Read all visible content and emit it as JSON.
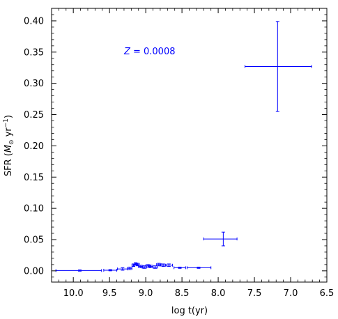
{
  "chart_data": {
    "type": "scatter",
    "title": "",
    "xlabel": "log t(yr)",
    "ylabel_parts": {
      "prefix": "SFR (",
      "msun": "M",
      "sun_symbol": "⊙",
      "mid": " yr",
      "exp": "−1",
      "suffix": ")"
    },
    "xlim": [
      10.3,
      6.5
    ],
    "ylim": [
      -0.018,
      0.42
    ],
    "x_inverted": true,
    "x_ticks": [
      10.0,
      9.5,
      9.0,
      8.5,
      8.0,
      7.5,
      7.0,
      6.5
    ],
    "x_tick_labels": [
      "10.0",
      "9.5",
      "9.0",
      "8.5",
      "8.0",
      "7.5",
      "7.0",
      "6.5"
    ],
    "y_ticks": [
      0.0,
      0.05,
      0.1,
      0.15,
      0.2,
      0.25,
      0.3,
      0.35,
      0.4
    ],
    "y_tick_labels": [
      "0.00",
      "0.05",
      "0.10",
      "0.15",
      "0.20",
      "0.25",
      "0.30",
      "0.35",
      "0.40"
    ],
    "annotation": {
      "italic": "Z",
      "rest": " = 0.0008",
      "x": 9.3,
      "y": 0.352
    },
    "series_color": "#0000ff",
    "points": [
      {
        "x": 7.18,
        "y": 0.327,
        "xerr_lo": 0.45,
        "xerr_hi": 0.47,
        "yerr": 0.072
      },
      {
        "x": 7.93,
        "y": 0.051,
        "xerr_lo": 0.27,
        "xerr_hi": 0.19,
        "yerr": 0.011
      },
      {
        "x": 9.91,
        "y": 0.0005,
        "xerr_lo": 0.33,
        "xerr_hi": 0.3,
        "yerr": 0.001
      },
      {
        "x": 9.49,
        "y": 0.001,
        "xerr_lo": 0.09,
        "xerr_hi": 0.09,
        "yerr": 0.001
      },
      {
        "x": 9.32,
        "y": 0.003,
        "xerr_lo": 0.07,
        "xerr_hi": 0.07,
        "yerr": 0.002
      },
      {
        "x": 9.22,
        "y": 0.004,
        "xerr_lo": 0.03,
        "xerr_hi": 0.03,
        "yerr": 0.002
      },
      {
        "x": 9.17,
        "y": 0.009,
        "xerr_lo": 0.02,
        "xerr_hi": 0.02,
        "yerr": 0.002
      },
      {
        "x": 9.14,
        "y": 0.011,
        "xerr_lo": 0.02,
        "xerr_hi": 0.02,
        "yerr": 0.002
      },
      {
        "x": 9.11,
        "y": 0.01,
        "xerr_lo": 0.02,
        "xerr_hi": 0.02,
        "yerr": 0.002
      },
      {
        "x": 9.07,
        "y": 0.007,
        "xerr_lo": 0.03,
        "xerr_hi": 0.03,
        "yerr": 0.002
      },
      {
        "x": 9.02,
        "y": 0.006,
        "xerr_lo": 0.03,
        "xerr_hi": 0.03,
        "yerr": 0.002
      },
      {
        "x": 8.97,
        "y": 0.008,
        "xerr_lo": 0.03,
        "xerr_hi": 0.03,
        "yerr": 0.002
      },
      {
        "x": 8.93,
        "y": 0.007,
        "xerr_lo": 0.03,
        "xerr_hi": 0.03,
        "yerr": 0.002
      },
      {
        "x": 8.87,
        "y": 0.006,
        "xerr_lo": 0.03,
        "xerr_hi": 0.03,
        "yerr": 0.002
      },
      {
        "x": 8.82,
        "y": 0.01,
        "xerr_lo": 0.03,
        "xerr_hi": 0.03,
        "yerr": 0.002
      },
      {
        "x": 8.76,
        "y": 0.009,
        "xerr_lo": 0.04,
        "xerr_hi": 0.04,
        "yerr": 0.002
      },
      {
        "x": 8.68,
        "y": 0.009,
        "xerr_lo": 0.05,
        "xerr_hi": 0.05,
        "yerr": 0.002
      },
      {
        "x": 8.53,
        "y": 0.005,
        "xerr_lo": 0.08,
        "xerr_hi": 0.08,
        "yerr": 0.001
      },
      {
        "x": 8.27,
        "y": 0.005,
        "xerr_lo": 0.16,
        "xerr_hi": 0.17,
        "yerr": 0.001
      }
    ]
  }
}
